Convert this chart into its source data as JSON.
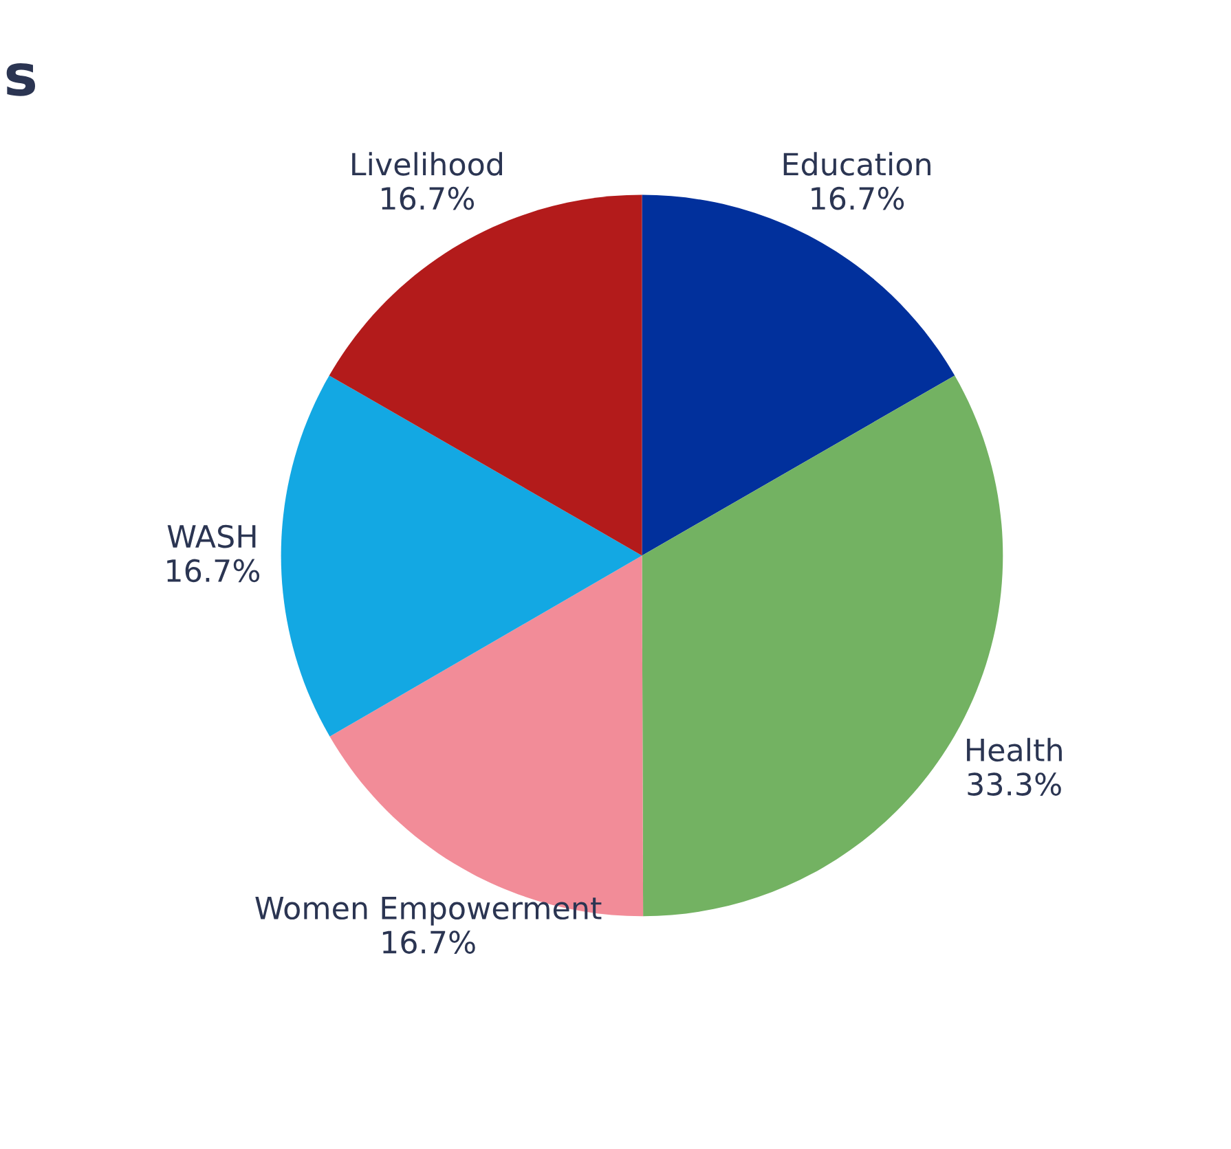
{
  "chart_data": {
    "type": "pie",
    "title": "s",
    "categories": [
      "Education",
      "Health",
      "Women Empowerment",
      "WASH",
      "Livelihood"
    ],
    "values": [
      16.7,
      33.3,
      16.7,
      16.7,
      16.7
    ],
    "value_labels": [
      "16.7%",
      "33.3%",
      "16.7%",
      "16.7%",
      "16.7%"
    ],
    "colors": [
      "#01309c",
      "#73b262",
      "#f28c98",
      "#13a8e3",
      "#b31b1b"
    ],
    "legend": false
  }
}
